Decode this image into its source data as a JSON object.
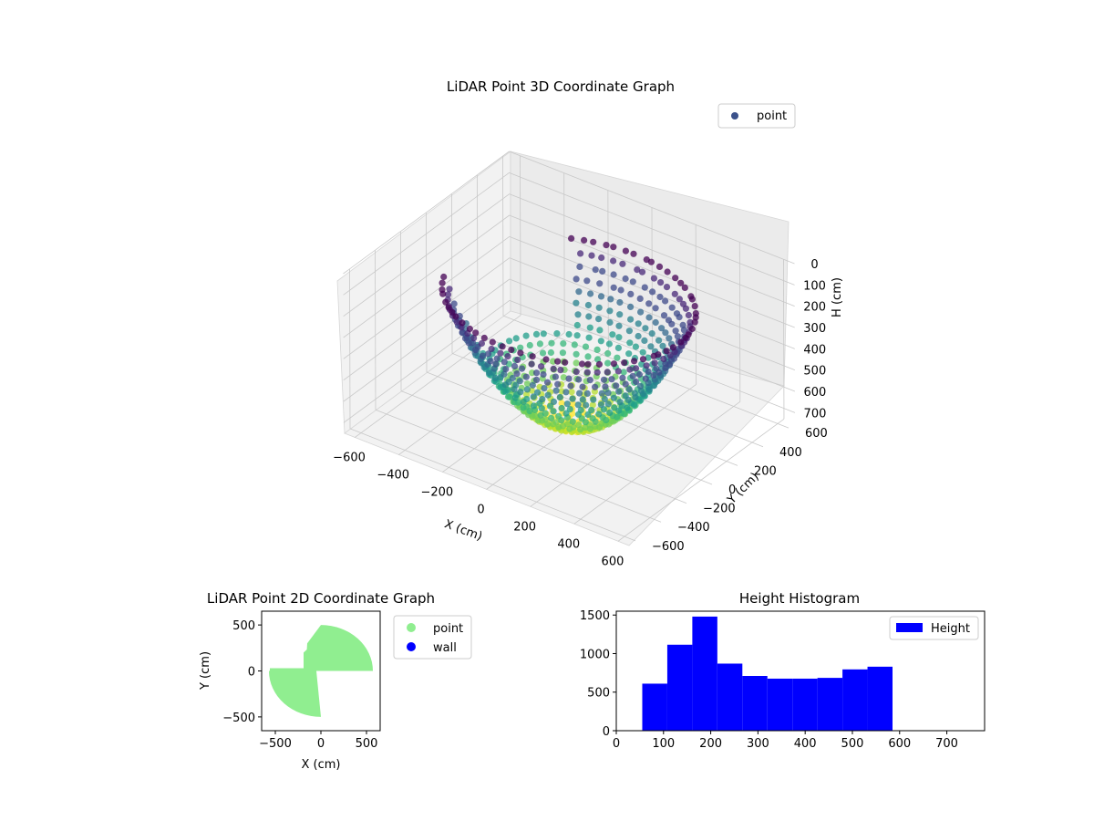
{
  "chart_data": [
    {
      "type": "scatter3d",
      "title": "LiDAR Point 3D Coordinate Graph",
      "xlabel": "X (cm)",
      "ylabel": "Y (cm)",
      "zlabel": "H (cm)",
      "xlim": [
        -650,
        650
      ],
      "ylim": [
        -650,
        650
      ],
      "zlim": [
        0,
        750
      ],
      "z_inverted": true,
      "xticks": [
        "−600",
        "−400",
        "−200",
        "0",
        "200",
        "400",
        "600"
      ],
      "yticks": [
        "−600",
        "−400",
        "−200",
        "0",
        "200",
        "400",
        "600"
      ],
      "zticks": [
        "0",
        "100",
        "200",
        "300",
        "400",
        "500",
        "600",
        "700"
      ],
      "grid": true,
      "colormap": "viridis",
      "legend": {
        "placement": "top-right",
        "entries": [
          "point"
        ]
      },
      "series": [
        {
          "name": "point",
          "color": "#3b528b",
          "description_shape": "bowl",
          "rim_radius": 500,
          "depth": 580,
          "point_count": 8000
        }
      ]
    },
    {
      "type": "scatter",
      "title": "LiDAR Point 2D Coordinate Graph",
      "xlabel": "X (cm)",
      "ylabel": "Y (cm)",
      "xlim": [
        -650,
        650
      ],
      "ylim": [
        -650,
        650
      ],
      "xticks": [
        -500,
        0,
        500
      ],
      "yticks": [
        -500,
        0,
        500
      ],
      "legend": {
        "placement": "outside-right",
        "entries": [
          "point",
          "wall"
        ]
      },
      "series": [
        {
          "name": "point",
          "color": "#90ee90"
        },
        {
          "name": "wall",
          "color": "#0000ff"
        }
      ]
    },
    {
      "type": "bar",
      "title": "Height Histogram",
      "xlabel": "",
      "ylabel": "",
      "xlim": [
        0,
        780
      ],
      "ylim": [
        0,
        1550
      ],
      "xticks": [
        0,
        100,
        200,
        300,
        400,
        500,
        600,
        700
      ],
      "yticks": [
        0,
        500,
        1000,
        1500
      ],
      "color": "#0000ff",
      "legend": {
        "placement": "top-right",
        "entries": [
          "Height"
        ]
      },
      "bins": [
        {
          "x0": 55,
          "x1": 108,
          "value": 610
        },
        {
          "x0": 108,
          "x1": 161,
          "value": 1115
        },
        {
          "x0": 161,
          "x1": 214,
          "value": 1480
        },
        {
          "x0": 214,
          "x1": 267,
          "value": 870
        },
        {
          "x0": 267,
          "x1": 320,
          "value": 710
        },
        {
          "x0": 320,
          "x1": 373,
          "value": 675
        },
        {
          "x0": 373,
          "x1": 426,
          "value": 675
        },
        {
          "x0": 426,
          "x1": 479,
          "value": 685
        },
        {
          "x0": 479,
          "x1": 532,
          "value": 795
        },
        {
          "x0": 532,
          "x1": 585,
          "value": 830
        }
      ]
    }
  ]
}
